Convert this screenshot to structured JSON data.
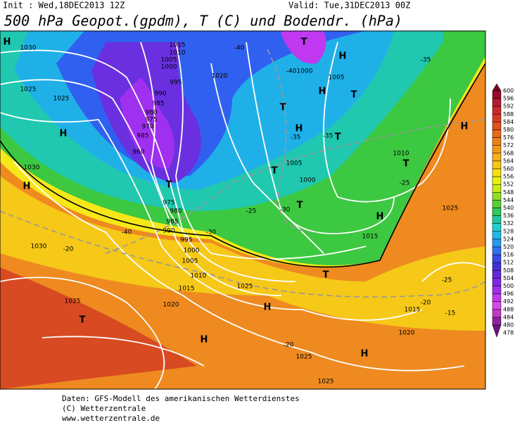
{
  "header": {
    "init": "Init : Wed,18DEC2013 12Z",
    "valid": "Valid: Tue,31DEC2013 00Z",
    "title": "500 hPa Geopot.(gpdm), T (C) und Bodendr. (hPa)"
  },
  "colorbar": {
    "ticks": [
      600,
      596,
      592,
      588,
      584,
      580,
      576,
      572,
      568,
      564,
      560,
      556,
      552,
      548,
      544,
      540,
      536,
      532,
      528,
      524,
      520,
      516,
      512,
      508,
      504,
      500,
      496,
      492,
      488,
      484,
      480,
      478
    ],
    "colors": [
      "#7a0020",
      "#9a0a28",
      "#b81830",
      "#cc2828",
      "#d83a20",
      "#e0501c",
      "#e86818",
      "#ee8018",
      "#f29818",
      "#f6b018",
      "#f8c818",
      "#f6e010",
      "#e8f010",
      "#c8ec18",
      "#90e020",
      "#58d030",
      "#30c858",
      "#20c8a0",
      "#20d0d0",
      "#20b8e8",
      "#2898f0",
      "#3070f0",
      "#3848e8",
      "#4030d8",
      "#6028e0",
      "#8028e8",
      "#a030f0",
      "#c038f0",
      "#d848e8",
      "#c038c8",
      "#9020a0",
      "#6a1480"
    ]
  },
  "map_labels": [
    "H",
    "1030",
    "1025",
    "1025",
    "H",
    "1030",
    "H",
    "1030",
    "-20",
    "1025",
    "T",
    "H",
    "1015",
    "1010",
    "1005",
    "1000",
    "995",
    "990",
    "985",
    "980",
    "975",
    "970",
    "985",
    "960",
    "T",
    "975",
    "980",
    "985",
    "990",
    "995",
    "1000",
    "1005",
    "1010",
    "1015",
    "1020",
    "1025",
    "H",
    "T",
    "-40",
    "H",
    "-40",
    "1000",
    "1005",
    "H",
    "T",
    "T",
    "H",
    "-35",
    "T",
    "1005",
    "T",
    "1000",
    "T",
    "-30",
    "1015",
    "H",
    "1010",
    "T",
    "-25",
    "1025",
    "T",
    "1015",
    "1020",
    "H",
    "1025",
    "1025",
    "-20",
    "-35",
    "-15",
    "-20",
    "-25",
    "H",
    "-25",
    "-30",
    "-35",
    "-40",
    "1020"
  ],
  "footer": [
    "Daten: GFS-Modell des amerikanischen Wetterdienstes",
    "(C) Wetterzentrale",
    "www.wetterzentrale.de"
  ]
}
